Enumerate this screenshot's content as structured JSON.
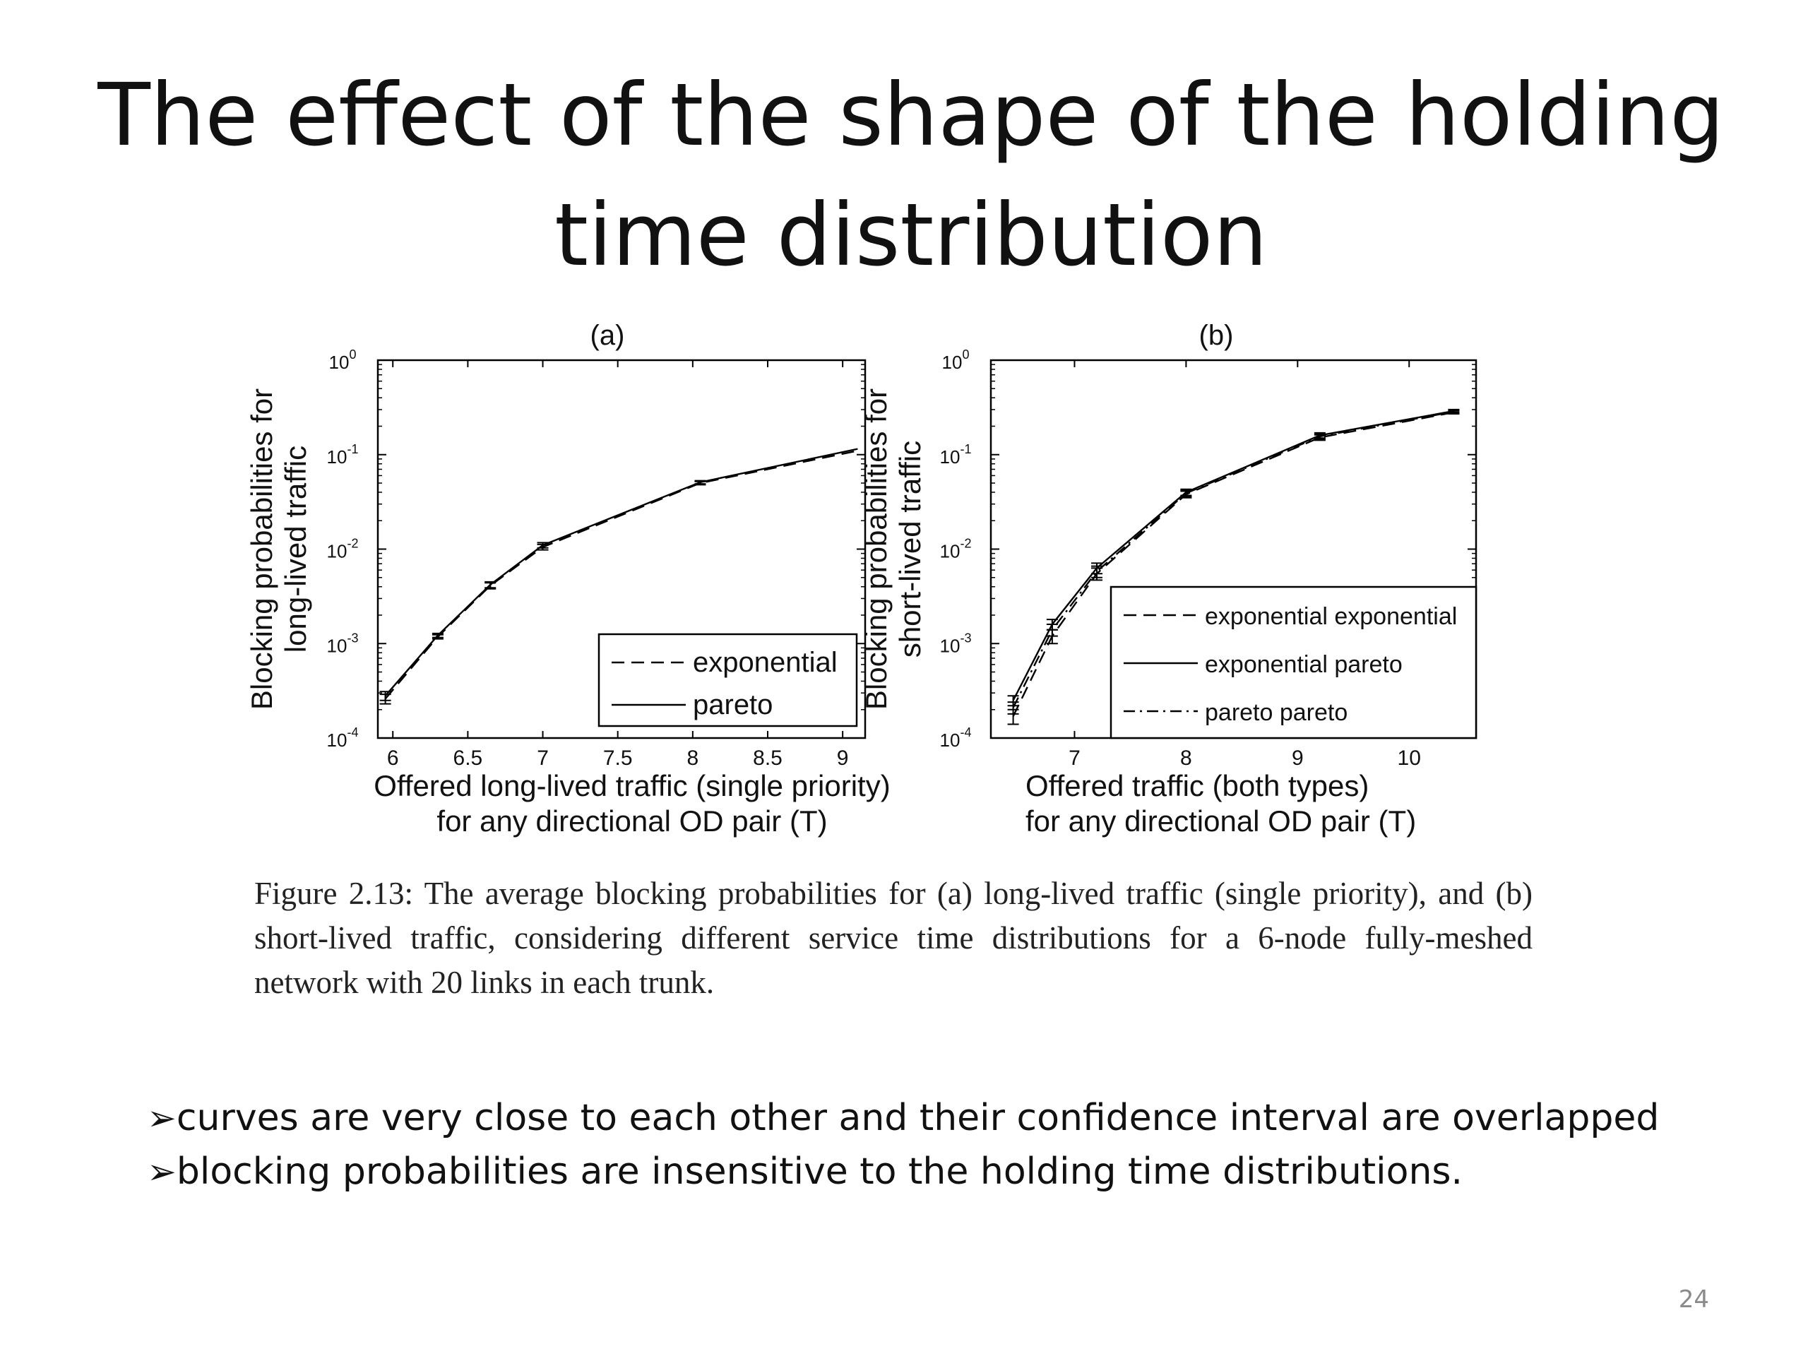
{
  "title": "The effect of the shape of the holding time distribution",
  "chart_data": [
    {
      "type": "line",
      "panel_title": "(a)",
      "xlabel_lines": [
        "Offered long-lived traffic (single priority)",
        "for any directional OD pair (T)"
      ],
      "ylabel_lines": [
        "Blocking probabilities for",
        "long-lived traffic"
      ],
      "xlim": [
        5.9,
        9.15
      ],
      "ylim": [
        0.0001,
        1
      ],
      "yscale": "log",
      "x_ticks": [
        6,
        6.5,
        7,
        7.5,
        8,
        8.5,
        9
      ],
      "x_tick_labels": [
        "6",
        "6.5",
        "7",
        "7.5",
        "8",
        "8.5",
        "9"
      ],
      "y_ticks": [
        0.0001,
        0.001,
        0.01,
        0.1,
        1
      ],
      "y_tick_labels": [
        [
          "10",
          "-4"
        ],
        [
          "10",
          "-3"
        ],
        [
          "10",
          "-2"
        ],
        [
          "10",
          "-1"
        ],
        [
          "10",
          "0"
        ]
      ],
      "grid": false,
      "legend_position": "bottom-right",
      "series": [
        {
          "name": "exponential",
          "style": "dashed",
          "x": [
            5.95,
            6.3,
            6.65,
            7.0,
            8.05,
            9.1
          ],
          "y": [
            0.00026,
            0.00118,
            0.0041,
            0.0105,
            0.05,
            0.11
          ],
          "err": [
            3e-05,
            6e-05,
            0.0003,
            0.0007,
            0.002,
            0
          ]
        },
        {
          "name": "pareto",
          "style": "solid",
          "x": [
            5.95,
            6.3,
            6.65,
            7.0,
            8.05,
            9.1
          ],
          "y": [
            0.00028,
            0.00122,
            0.0042,
            0.011,
            0.051,
            0.115
          ],
          "err": [
            3e-05,
            6e-05,
            0.0003,
            0.0007,
            0.002,
            0
          ]
        }
      ]
    },
    {
      "type": "line",
      "panel_title": "(b)",
      "xlabel_lines": [
        "Offered traffic (both types)",
        "for any directional OD pair (T)"
      ],
      "ylabel_lines": [
        "Blocking probabilities for",
        "short-lived traffic"
      ],
      "xlim": [
        6.25,
        10.6
      ],
      "ylim": [
        0.0001,
        1
      ],
      "yscale": "log",
      "x_ticks": [
        7,
        8,
        9,
        10
      ],
      "x_tick_labels": [
        "7",
        "8",
        "9",
        "10"
      ],
      "y_ticks": [
        0.0001,
        0.001,
        0.01,
        0.1,
        1
      ],
      "y_tick_labels": [
        [
          "10",
          "-4"
        ],
        [
          "10",
          "-3"
        ],
        [
          "10",
          "-2"
        ],
        [
          "10",
          "-1"
        ],
        [
          "10",
          "0"
        ]
      ],
      "grid": false,
      "legend_position": "bottom-right",
      "series": [
        {
          "name": "exponential exponential",
          "style": "dashed",
          "x": [
            6.45,
            6.8,
            7.2,
            8.0,
            9.2,
            10.4
          ],
          "y": [
            0.00017,
            0.0012,
            0.0055,
            0.038,
            0.152,
            0.28
          ],
          "err": [
            3e-05,
            0.0002,
            0.0008,
            0.003,
            0.01,
            0.01
          ]
        },
        {
          "name": "exponential pareto",
          "style": "solid",
          "x": [
            6.45,
            6.8,
            7.2,
            8.0,
            9.2,
            10.4
          ],
          "y": [
            0.00025,
            0.0016,
            0.0063,
            0.04,
            0.16,
            0.29
          ],
          "err": [
            3e-05,
            0.0002,
            0.0008,
            0.003,
            0.01,
            0.01
          ]
        },
        {
          "name": "pareto pareto",
          "style": "dashdot",
          "x": [
            6.45,
            6.8,
            7.2,
            8.0,
            9.2,
            10.4
          ],
          "y": [
            0.00021,
            0.0014,
            0.0058,
            0.039,
            0.156,
            0.285
          ],
          "err": [
            3e-05,
            0.0002,
            0.0008,
            0.003,
            0.01,
            0.01
          ]
        }
      ]
    }
  ],
  "caption": "Figure 2.13: The average blocking probabilities for (a) long-lived traffic (single priority), and (b) short-lived traffic, considering different service time distributions for a 6-node fully-meshed network with 20 links in each trunk.",
  "bullets": [
    "curves are very close to each other and their confidence interval are overlapped",
    "blocking probabilities are insensitive to the holding time distributions."
  ],
  "bullet_glyph": "➢",
  "page_number": "24"
}
